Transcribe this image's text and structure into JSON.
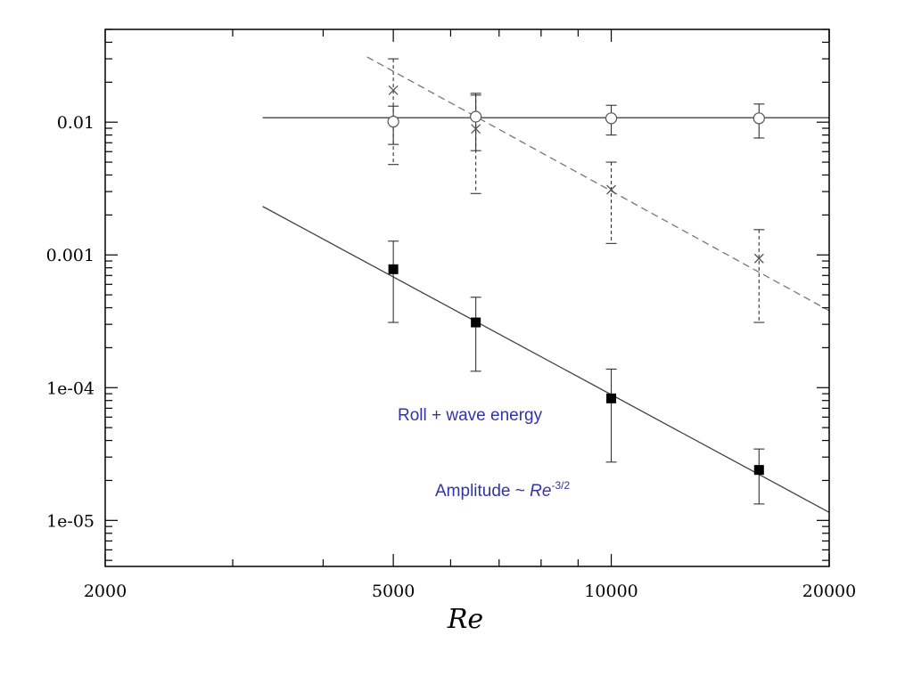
{
  "chart_data": {
    "type": "scatter",
    "title": "",
    "xlabel": "Re",
    "ylabel": "",
    "xscale": "log",
    "yscale": "log",
    "xlim": [
      2000,
      20000
    ],
    "ylim": [
      4.5e-06,
      0.05
    ],
    "x_ticks": [
      {
        "value": 2000,
        "label": "2000"
      },
      {
        "value": 5000,
        "label": "5000"
      },
      {
        "value": 10000,
        "label": "10000"
      },
      {
        "value": 20000,
        "label": "20000"
      }
    ],
    "y_ticks": [
      {
        "value": 0.01,
        "label": "0.01"
      },
      {
        "value": 0.001,
        "label": "0.001"
      },
      {
        "value": 0.0001,
        "label": "1e-04"
      },
      {
        "value": 1e-05,
        "label": "1e-05"
      }
    ],
    "grid": false,
    "series": [
      {
        "marker": "circle",
        "color": "#555555",
        "x": [
          5000,
          6500,
          10000,
          16000
        ],
        "y": [
          0.0101,
          0.011,
          0.0107,
          0.0107
        ],
        "err_low": [
          0.0068,
          0.0061,
          0.008,
          0.0076
        ],
        "err_high": [
          0.0132,
          0.016,
          0.0134,
          0.0137
        ],
        "fit": {
          "style": "solid",
          "color": "#444444",
          "x": [
            3300,
            20000
          ],
          "y": [
            0.0108,
            0.0108
          ]
        }
      },
      {
        "marker": "cross",
        "color": "#555555",
        "x": [
          5000,
          6500,
          10000,
          16000
        ],
        "y": [
          0.0174,
          0.0089,
          0.0031,
          0.00094
        ],
        "err_low": [
          0.0048,
          0.0029,
          0.00122,
          0.00031
        ],
        "err_high": [
          0.03,
          0.0165,
          0.005,
          0.00155
        ],
        "fit": {
          "style": "dashed",
          "color": "#777777",
          "x": [
            4600,
            20000
          ],
          "y": [
            0.031,
            0.00038
          ]
        }
      },
      {
        "marker": "square",
        "color": "#000000",
        "x": [
          5000,
          6500,
          10000,
          16000
        ],
        "y": [
          0.00078,
          0.00031,
          8.3e-05,
          2.4e-05
        ],
        "err_low": [
          0.00031,
          0.000133,
          2.75e-05,
          1.33e-05
        ],
        "err_high": [
          0.00127,
          0.00048,
          0.000138,
          3.45e-05
        ],
        "fit": {
          "style": "solid",
          "color": "#444444",
          "x": [
            3300,
            20000
          ],
          "y": [
            0.00232,
            1.15e-05
          ]
        }
      }
    ],
    "annotations": [
      {
        "text": "Roll + wave energy",
        "color": "#3333aa"
      },
      {
        "text": "Amplitude ~ ",
        "math_base": "Re",
        "math_sup": "-3/2",
        "color": "#3333aa"
      }
    ]
  }
}
